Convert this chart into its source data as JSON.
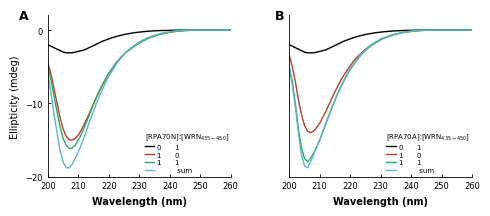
{
  "panel_A": {
    "title": "A",
    "legend_title": "[RPA70N]:[WRN$_{435-450}$]",
    "xlim": [
      200,
      260
    ],
    "ylim": [
      -20,
      2
    ],
    "yticks": [
      -20,
      -10,
      0
    ],
    "xticks": [
      200,
      210,
      220,
      230,
      240,
      250,
      260
    ],
    "xlabel": "Wavelength (nm)",
    "ylabel": "Ellipticity (mdeg)",
    "curves": {
      "black": {
        "x": [
          200,
          201,
          202,
          203,
          204,
          205,
          206,
          207,
          208,
          209,
          210,
          211,
          212,
          213,
          214,
          215,
          216,
          217,
          218,
          219,
          220,
          221,
          222,
          223,
          224,
          225,
          226,
          227,
          228,
          229,
          230,
          231,
          232,
          233,
          234,
          235,
          236,
          237,
          238,
          239,
          240,
          241,
          242,
          243,
          244,
          245,
          246,
          247,
          248,
          249,
          250,
          251,
          252,
          253,
          254,
          255,
          256,
          257,
          258,
          259,
          260
        ],
        "y": [
          -2.0,
          -2.2,
          -2.4,
          -2.6,
          -2.8,
          -3.0,
          -3.1,
          -3.1,
          -3.1,
          -3.0,
          -2.9,
          -2.8,
          -2.7,
          -2.5,
          -2.3,
          -2.1,
          -1.9,
          -1.7,
          -1.5,
          -1.35,
          -1.2,
          -1.05,
          -0.92,
          -0.8,
          -0.7,
          -0.6,
          -0.52,
          -0.45,
          -0.38,
          -0.32,
          -0.27,
          -0.23,
          -0.19,
          -0.15,
          -0.12,
          -0.1,
          -0.08,
          -0.06,
          -0.05,
          -0.04,
          -0.03,
          -0.02,
          -0.01,
          0.0,
          0.0,
          0.0,
          0.0,
          0.0,
          0.0,
          0.0,
          0.0,
          0.0,
          0.0,
          0.0,
          0.0,
          0.0,
          0.0,
          0.0,
          0.0,
          0.0,
          0.0
        ]
      },
      "red": {
        "x": [
          200,
          201,
          202,
          203,
          204,
          205,
          206,
          207,
          208,
          209,
          210,
          211,
          212,
          213,
          214,
          215,
          216,
          217,
          218,
          219,
          220,
          221,
          222,
          223,
          224,
          225,
          226,
          227,
          228,
          229,
          230,
          231,
          232,
          233,
          234,
          235,
          236,
          237,
          238,
          239,
          240,
          241,
          242,
          243,
          244,
          245,
          246,
          247,
          248,
          249,
          250,
          251,
          252,
          253,
          254,
          255,
          256,
          257,
          258,
          259,
          260
        ],
        "y": [
          -4.5,
          -6.0,
          -8.0,
          -10.0,
          -12.0,
          -13.5,
          -14.5,
          -15.0,
          -15.0,
          -14.8,
          -14.3,
          -13.6,
          -12.8,
          -11.9,
          -11.0,
          -10.0,
          -9.1,
          -8.2,
          -7.4,
          -6.6,
          -5.9,
          -5.3,
          -4.7,
          -4.2,
          -3.7,
          -3.3,
          -2.9,
          -2.6,
          -2.3,
          -2.0,
          -1.8,
          -1.5,
          -1.3,
          -1.1,
          -0.95,
          -0.8,
          -0.67,
          -0.55,
          -0.45,
          -0.36,
          -0.28,
          -0.22,
          -0.17,
          -0.12,
          -0.09,
          -0.06,
          -0.04,
          -0.02,
          -0.01,
          0.0,
          0.0,
          0.0,
          0.0,
          0.0,
          0.0,
          0.0,
          0.0,
          0.0,
          0.0,
          0.0,
          0.0
        ]
      },
      "green": {
        "x": [
          200,
          201,
          202,
          203,
          204,
          205,
          206,
          207,
          208,
          209,
          210,
          211,
          212,
          213,
          214,
          215,
          216,
          217,
          218,
          219,
          220,
          221,
          222,
          223,
          224,
          225,
          226,
          227,
          228,
          229,
          230,
          231,
          232,
          233,
          234,
          235,
          236,
          237,
          238,
          239,
          240,
          241,
          242,
          243,
          244,
          245,
          246,
          247,
          248,
          249,
          250,
          251,
          252,
          253,
          254,
          255,
          256,
          257,
          258,
          259,
          260
        ],
        "y": [
          -5.0,
          -6.8,
          -9.0,
          -11.2,
          -13.2,
          -14.8,
          -15.7,
          -16.2,
          -16.1,
          -15.7,
          -15.0,
          -14.2,
          -13.2,
          -12.2,
          -11.1,
          -10.1,
          -9.1,
          -8.2,
          -7.4,
          -6.6,
          -5.9,
          -5.3,
          -4.7,
          -4.2,
          -3.7,
          -3.3,
          -2.9,
          -2.6,
          -2.3,
          -2.0,
          -1.8,
          -1.5,
          -1.3,
          -1.1,
          -0.95,
          -0.8,
          -0.67,
          -0.55,
          -0.45,
          -0.36,
          -0.28,
          -0.22,
          -0.17,
          -0.12,
          -0.09,
          -0.06,
          -0.04,
          -0.02,
          -0.01,
          0.0,
          0.0,
          0.0,
          0.0,
          0.0,
          0.0,
          0.0,
          0.0,
          0.0,
          0.0,
          0.0,
          0.0
        ]
      },
      "blue": {
        "x": [
          200,
          201,
          202,
          203,
          204,
          205,
          206,
          207,
          208,
          209,
          210,
          211,
          212,
          213,
          214,
          215,
          216,
          217,
          218,
          219,
          220,
          221,
          222,
          223,
          224,
          225,
          226,
          227,
          228,
          229,
          230,
          231,
          232,
          233,
          234,
          235,
          236,
          237,
          238,
          239,
          240,
          241,
          242,
          243,
          244,
          245,
          246,
          247,
          248,
          249,
          250,
          251,
          252,
          253,
          254,
          255,
          256,
          257,
          258,
          259,
          260
        ],
        "y": [
          -6.0,
          -8.5,
          -11.5,
          -14.0,
          -16.5,
          -18.0,
          -18.8,
          -18.8,
          -18.3,
          -17.5,
          -16.6,
          -15.6,
          -14.5,
          -13.3,
          -12.1,
          -11.0,
          -9.9,
          -8.9,
          -8.0,
          -7.1,
          -6.3,
          -5.6,
          -4.9,
          -4.3,
          -3.8,
          -3.3,
          -2.9,
          -2.5,
          -2.2,
          -1.9,
          -1.6,
          -1.4,
          -1.2,
          -1.0,
          -0.85,
          -0.7,
          -0.58,
          -0.46,
          -0.37,
          -0.29,
          -0.22,
          -0.16,
          -0.11,
          -0.07,
          -0.04,
          -0.02,
          -0.01,
          0.0,
          0.0,
          0.0,
          0.0,
          0.0,
          0.0,
          0.0,
          0.0,
          0.0,
          0.0,
          0.0,
          0.0,
          0.0,
          0.0
        ]
      }
    },
    "legend_col1": [
      "0",
      "1",
      "1",
      ""
    ],
    "legend_col2": [
      "1",
      "0",
      "1",
      "sum"
    ],
    "legend_colors": [
      "#000000",
      "#c0392b",
      "#27ae60",
      "#5bb8c4"
    ]
  },
  "panel_B": {
    "title": "B",
    "legend_title": "[RPA70A]:[WRN$_{435-450}$]",
    "xlim": [
      200,
      260
    ],
    "ylim": [
      -20,
      2
    ],
    "yticks": [
      -20,
      -10,
      0
    ],
    "xticks": [
      200,
      210,
      220,
      230,
      240,
      250,
      260
    ],
    "xlabel": "Wavelength (nm)",
    "ylabel": "Ellipticity (mdeg)",
    "curves": {
      "black": {
        "x": [
          200,
          201,
          202,
          203,
          204,
          205,
          206,
          207,
          208,
          209,
          210,
          211,
          212,
          213,
          214,
          215,
          216,
          217,
          218,
          219,
          220,
          221,
          222,
          223,
          224,
          225,
          226,
          227,
          228,
          229,
          230,
          231,
          232,
          233,
          234,
          235,
          236,
          237,
          238,
          239,
          240,
          241,
          242,
          243,
          244,
          245,
          246,
          247,
          248,
          249,
          250,
          251,
          252,
          253,
          254,
          255,
          256,
          257,
          258,
          259,
          260
        ],
        "y": [
          -2.0,
          -2.2,
          -2.4,
          -2.6,
          -2.8,
          -3.0,
          -3.1,
          -3.1,
          -3.1,
          -3.0,
          -2.9,
          -2.8,
          -2.7,
          -2.5,
          -2.3,
          -2.1,
          -1.9,
          -1.7,
          -1.5,
          -1.35,
          -1.2,
          -1.05,
          -0.92,
          -0.8,
          -0.7,
          -0.6,
          -0.52,
          -0.45,
          -0.38,
          -0.32,
          -0.27,
          -0.23,
          -0.19,
          -0.15,
          -0.12,
          -0.1,
          -0.08,
          -0.06,
          -0.05,
          -0.04,
          -0.03,
          -0.02,
          -0.01,
          0.0,
          0.0,
          0.0,
          0.0,
          0.0,
          0.0,
          0.0,
          0.0,
          0.0,
          0.0,
          0.0,
          0.0,
          0.0,
          0.0,
          0.0,
          0.0,
          0.0,
          0.0
        ]
      },
      "red": {
        "x": [
          200,
          201,
          202,
          203,
          204,
          205,
          206,
          207,
          208,
          209,
          210,
          211,
          212,
          213,
          214,
          215,
          216,
          217,
          218,
          219,
          220,
          221,
          222,
          223,
          224,
          225,
          226,
          227,
          228,
          229,
          230,
          231,
          232,
          233,
          234,
          235,
          236,
          237,
          238,
          239,
          240,
          241,
          242,
          243,
          244,
          245,
          246,
          247,
          248,
          249,
          250,
          251,
          252,
          253,
          254,
          255,
          256,
          257,
          258,
          259,
          260
        ],
        "y": [
          -3.5,
          -5.0,
          -7.0,
          -9.5,
          -11.5,
          -13.0,
          -13.8,
          -14.0,
          -13.8,
          -13.3,
          -12.7,
          -11.9,
          -11.1,
          -10.2,
          -9.3,
          -8.4,
          -7.6,
          -6.8,
          -6.1,
          -5.5,
          -4.9,
          -4.3,
          -3.8,
          -3.4,
          -3.0,
          -2.6,
          -2.3,
          -2.0,
          -1.8,
          -1.5,
          -1.3,
          -1.1,
          -0.95,
          -0.8,
          -0.67,
          -0.55,
          -0.45,
          -0.36,
          -0.29,
          -0.22,
          -0.17,
          -0.12,
          -0.09,
          -0.06,
          -0.04,
          -0.02,
          -0.01,
          0.0,
          0.0,
          0.0,
          0.0,
          0.0,
          0.0,
          0.0,
          0.0,
          0.0,
          0.0,
          0.0,
          0.0,
          0.0,
          0.0
        ]
      },
      "green": {
        "x": [
          200,
          201,
          202,
          203,
          204,
          205,
          206,
          207,
          208,
          209,
          210,
          211,
          212,
          213,
          214,
          215,
          216,
          217,
          218,
          219,
          220,
          221,
          222,
          223,
          224,
          225,
          226,
          227,
          228,
          229,
          230,
          231,
          232,
          233,
          234,
          235,
          236,
          237,
          238,
          239,
          240,
          241,
          242,
          243,
          244,
          245,
          246,
          247,
          248,
          249,
          250,
          251,
          252,
          253,
          254,
          255,
          256,
          257,
          258,
          259,
          260
        ],
        "y": [
          -5.0,
          -7.0,
          -10.0,
          -13.5,
          -16.0,
          -17.5,
          -18.0,
          -17.5,
          -16.8,
          -15.9,
          -15.0,
          -13.9,
          -12.8,
          -11.7,
          -10.6,
          -9.6,
          -8.6,
          -7.7,
          -6.9,
          -6.1,
          -5.4,
          -4.8,
          -4.2,
          -3.7,
          -3.2,
          -2.8,
          -2.4,
          -2.1,
          -1.8,
          -1.6,
          -1.3,
          -1.1,
          -0.95,
          -0.8,
          -0.67,
          -0.55,
          -0.45,
          -0.36,
          -0.29,
          -0.22,
          -0.17,
          -0.12,
          -0.09,
          -0.06,
          -0.04,
          -0.02,
          -0.01,
          0.0,
          0.0,
          0.0,
          0.0,
          0.0,
          0.0,
          0.0,
          0.0,
          0.0,
          0.0,
          0.0,
          0.0,
          0.0,
          0.0
        ]
      },
      "blue": {
        "x": [
          200,
          201,
          202,
          203,
          204,
          205,
          206,
          207,
          208,
          209,
          210,
          211,
          212,
          213,
          214,
          215,
          216,
          217,
          218,
          219,
          220,
          221,
          222,
          223,
          224,
          225,
          226,
          227,
          228,
          229,
          230,
          231,
          232,
          233,
          234,
          235,
          236,
          237,
          238,
          239,
          240,
          241,
          242,
          243,
          244,
          245,
          246,
          247,
          248,
          249,
          250,
          251,
          252,
          253,
          254,
          255,
          256,
          257,
          258,
          259,
          260
        ],
        "y": [
          -5.0,
          -7.5,
          -10.5,
          -14.0,
          -17.0,
          -18.5,
          -18.8,
          -18.0,
          -17.0,
          -16.0,
          -15.0,
          -13.8,
          -12.7,
          -11.6,
          -10.5,
          -9.5,
          -8.5,
          -7.6,
          -6.8,
          -6.0,
          -5.3,
          -4.7,
          -4.1,
          -3.6,
          -3.1,
          -2.7,
          -2.3,
          -2.0,
          -1.7,
          -1.5,
          -1.2,
          -1.05,
          -0.88,
          -0.74,
          -0.62,
          -0.51,
          -0.41,
          -0.33,
          -0.26,
          -0.2,
          -0.15,
          -0.1,
          -0.07,
          -0.04,
          -0.02,
          -0.01,
          0.0,
          0.0,
          0.0,
          0.0,
          0.0,
          0.0,
          0.0,
          0.0,
          0.0,
          0.0,
          0.0,
          0.0,
          0.0,
          0.0,
          0.0
        ]
      }
    },
    "legend_col1": [
      "0",
      "1",
      "1",
      ""
    ],
    "legend_col2": [
      "1",
      "0",
      "1",
      "sum"
    ],
    "legend_colors": [
      "#000000",
      "#c0392b",
      "#27ae60",
      "#5bb8c4"
    ]
  },
  "bg_color": "#ffffff",
  "figure_bg": "#ffffff"
}
